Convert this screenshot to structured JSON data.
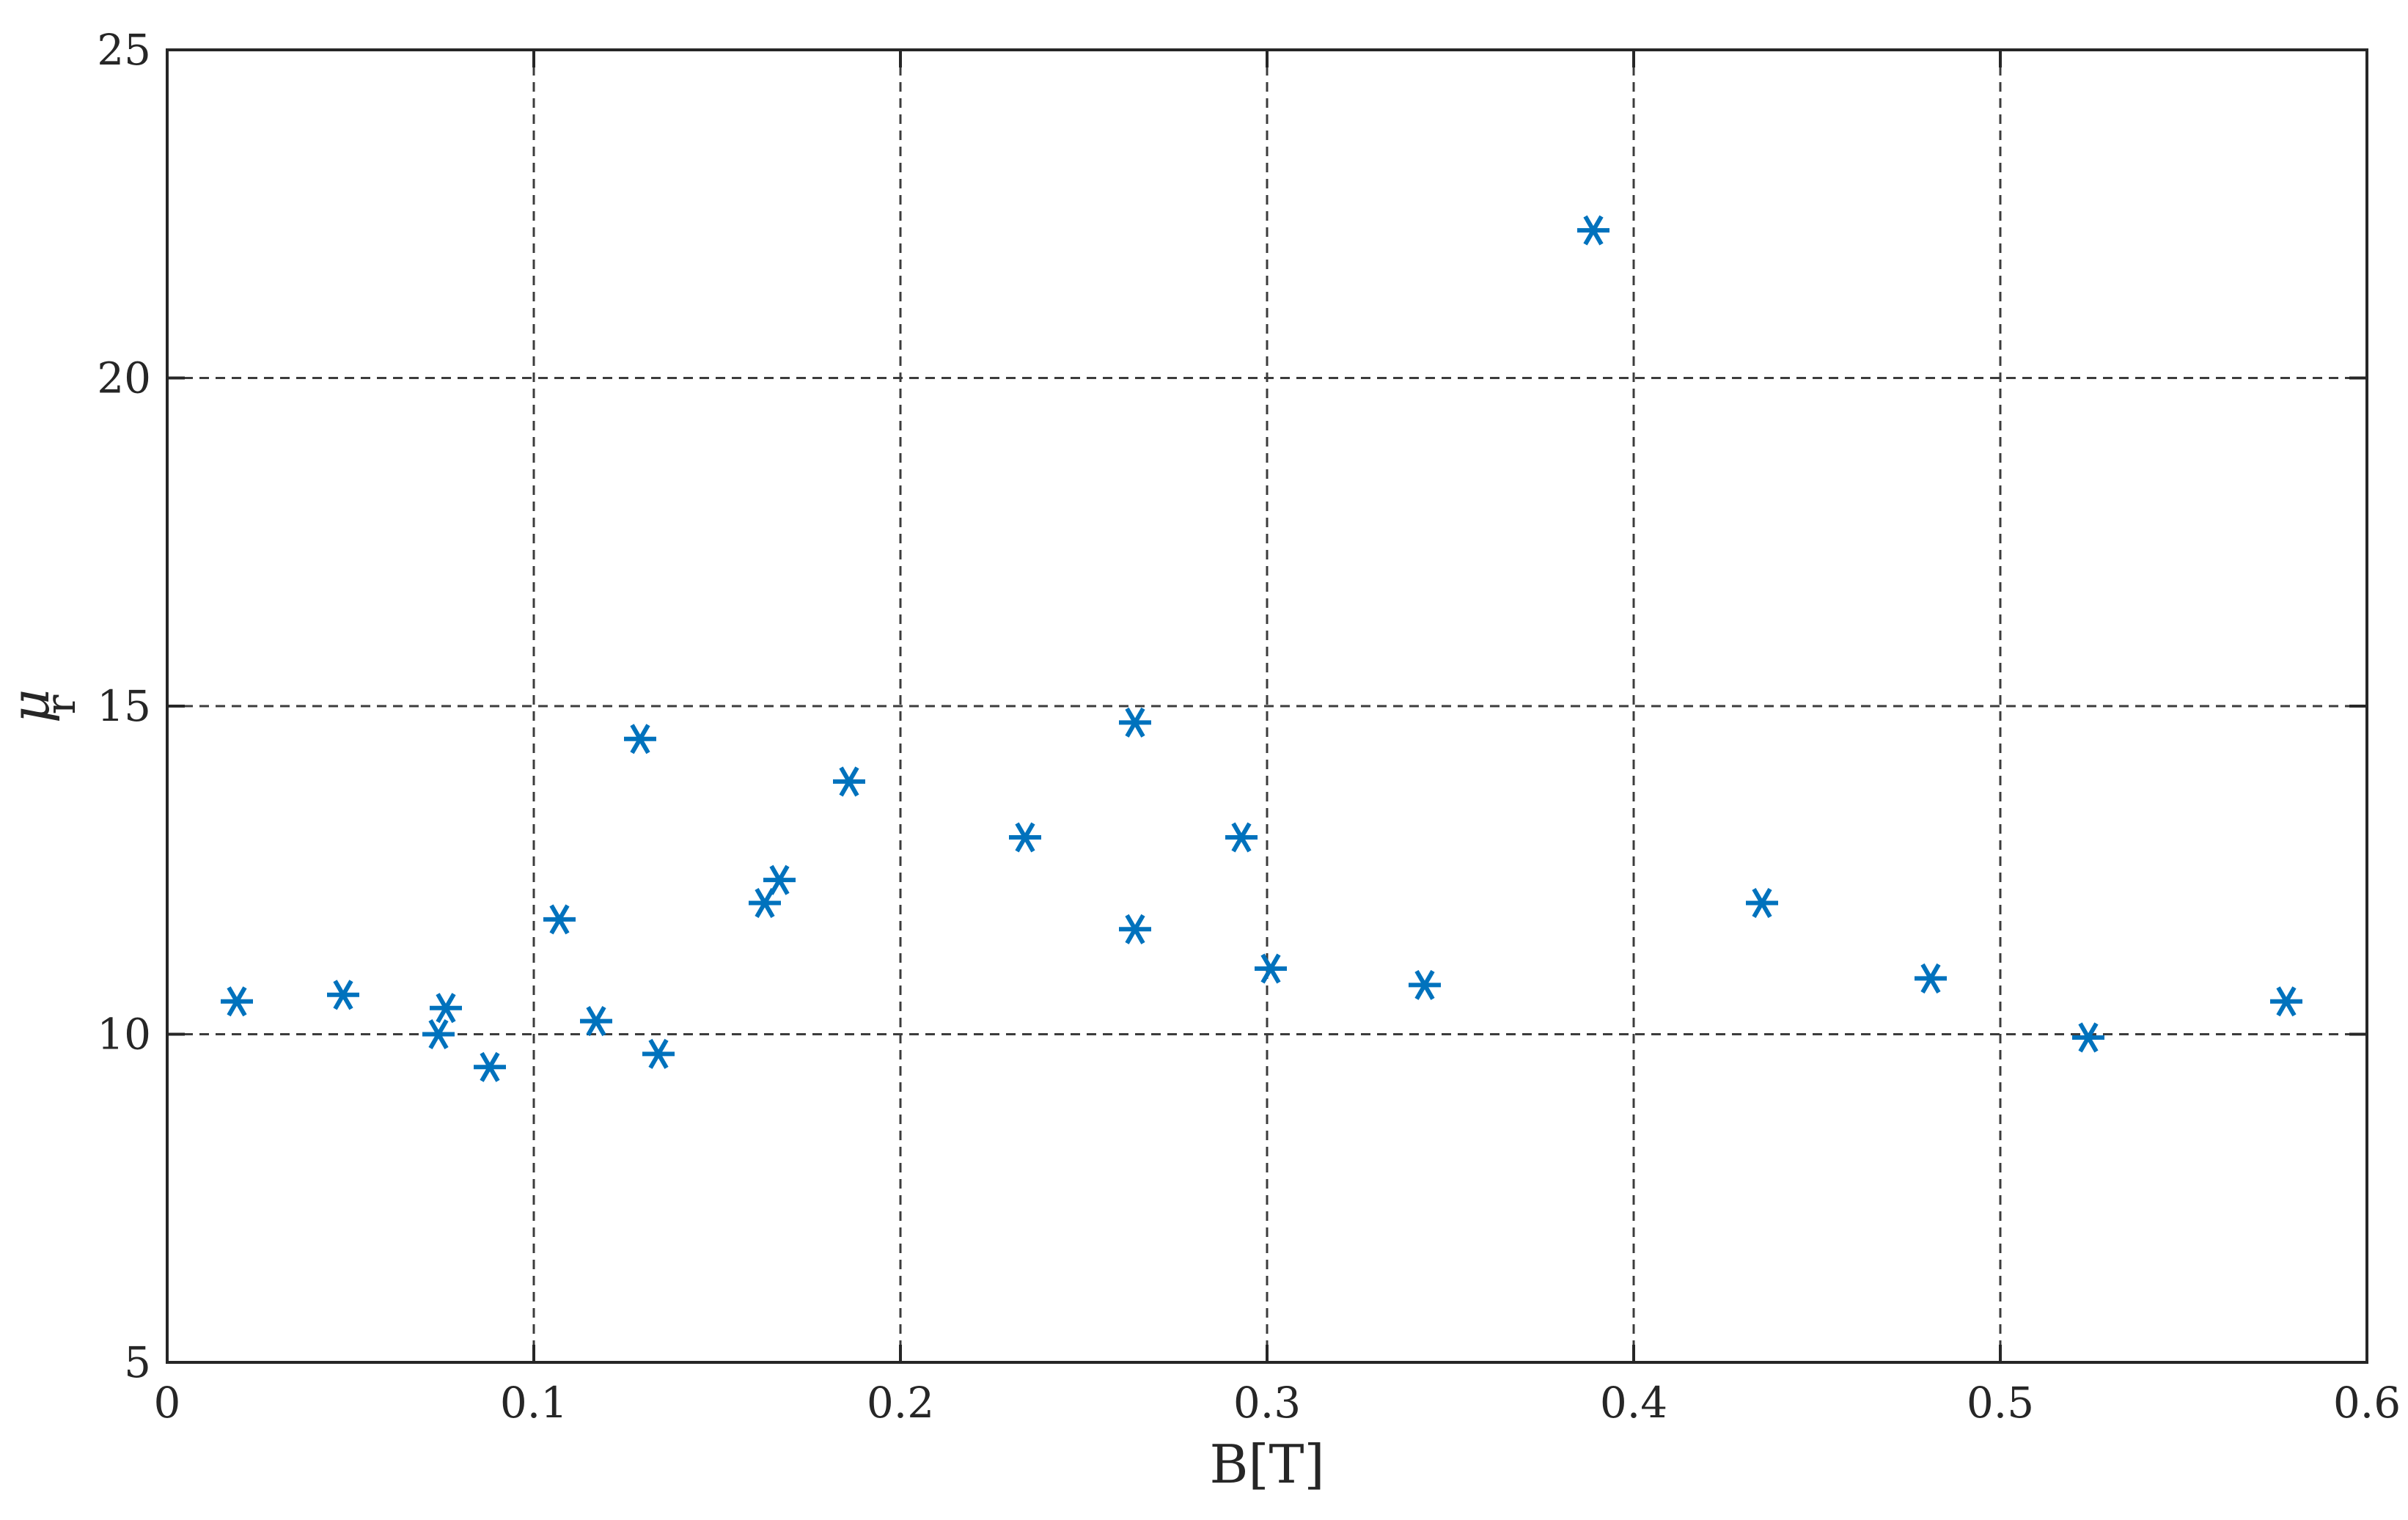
{
  "chart_data": {
    "type": "scatter",
    "title": "",
    "xlabel": "B[T]",
    "ylabel": {
      "symbol": "μ",
      "subscript": "r"
    },
    "xlim": [
      0,
      0.6
    ],
    "ylim": [
      5,
      25
    ],
    "xticks": [
      0,
      0.1,
      0.2,
      0.3,
      0.4,
      0.5,
      0.6
    ],
    "xtick_labels": [
      "0",
      "0.1",
      "0.2",
      "0.3",
      "0.4",
      "0.5",
      "0.6"
    ],
    "yticks": [
      5,
      10,
      15,
      20,
      25
    ],
    "ytick_labels": [
      "5",
      "10",
      "15",
      "20",
      "25"
    ],
    "grid": true,
    "marker": "asterisk",
    "color": "#0072BD",
    "series": [
      {
        "x": [
          0.019,
          0.048,
          0.074,
          0.076,
          0.088,
          0.107,
          0.117,
          0.129,
          0.134,
          0.163,
          0.167,
          0.186,
          0.234,
          0.264,
          0.264,
          0.293,
          0.301,
          0.343,
          0.389,
          0.435,
          0.481,
          0.524,
          0.578
        ],
        "y": [
          10.5,
          10.6,
          10.0,
          10.4,
          9.5,
          11.75,
          10.2,
          14.5,
          9.7,
          12.0,
          12.35,
          13.85,
          13.0,
          14.75,
          11.6,
          13.0,
          11.0,
          10.75,
          22.25,
          12.0,
          10.85,
          9.95,
          10.5
        ]
      }
    ]
  }
}
